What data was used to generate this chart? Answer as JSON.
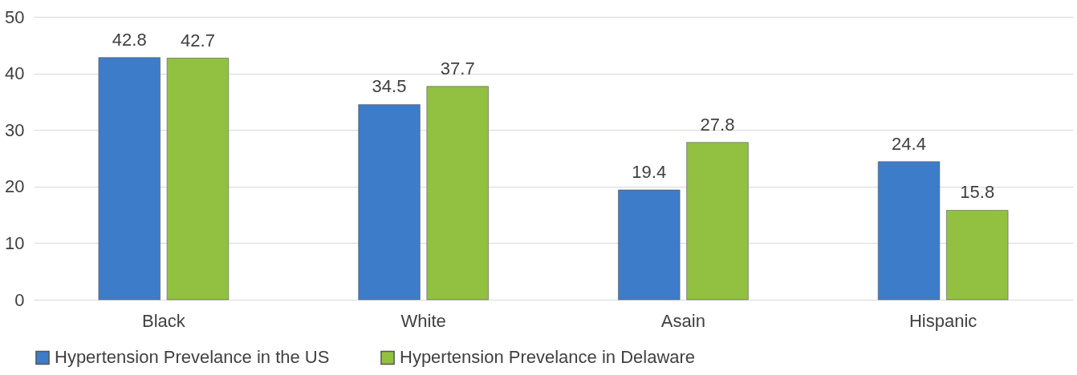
{
  "chart_data": {
    "type": "bar",
    "categories": [
      "Black",
      "White",
      "Asain",
      "Hispanic"
    ],
    "series": [
      {
        "name": "Hypertension Prevelance in the US",
        "color": "#3d7cc9",
        "values": [
          42.8,
          34.5,
          19.4,
          24.4
        ]
      },
      {
        "name": "Hypertension Prevelance in Delaware",
        "color": "#92c141",
        "values": [
          42.7,
          37.7,
          27.8,
          15.8
        ]
      }
    ],
    "ylim": [
      0,
      50
    ],
    "yticks": [
      0,
      10,
      20,
      30,
      40,
      50
    ],
    "grid": "y",
    "legend": "bottom",
    "data_labels": true
  }
}
